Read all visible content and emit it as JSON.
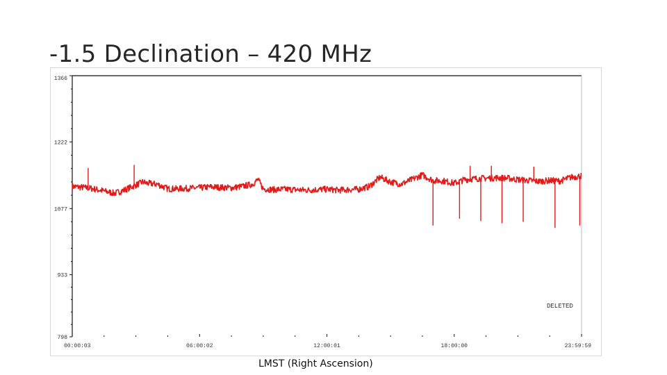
{
  "slide": {
    "title": "-1.5 Declination – 420 MHz",
    "xaxis_title": "LMST (Right Ascension)"
  },
  "colors": {
    "series": "#e11a1a",
    "axis": "#111111",
    "tick_text": "#333333",
    "background": "#ffffff"
  },
  "chart_data": {
    "type": "line",
    "title": "",
    "xlabel": "LMST (Right Ascension)",
    "ylabel": "",
    "xlim": [
      "00:00:03",
      "23:59:59"
    ],
    "ylim": [
      798,
      1366
    ],
    "grid": false,
    "y_ticks": [
      "1366",
      "1222",
      "1077",
      "933",
      "798"
    ],
    "x_ticks": [
      "00:00:03",
      "06:00:02",
      "12:00:01",
      "18:00:00",
      "23:59:59"
    ],
    "annotation": "DELETED",
    "series": [
      {
        "x": [
          "00:00:03",
          "00:30:00",
          "01:00:00",
          "01:30:00",
          "02:00:00",
          "02:30:00",
          "03:00:00",
          "03:20:00",
          "03:30:00",
          "04:00:00",
          "04:30:00",
          "05:00:00",
          "05:30:00",
          "06:00:00",
          "06:30:00",
          "07:00:00",
          "07:30:00",
          "08:00:00",
          "08:30:00",
          "08:45:00",
          "09:00:00",
          "09:30:00",
          "10:00:00",
          "10:30:00",
          "11:00:00",
          "11:30:00",
          "12:00:00",
          "12:30:00",
          "13:00:00",
          "13:30:00",
          "14:00:00",
          "14:30:00",
          "15:00:00",
          "15:30:00",
          "16:00:00",
          "16:30:00",
          "17:00:00",
          "17:30:00",
          "18:00:00",
          "18:30:00",
          "19:00:00",
          "19:30:00",
          "20:00:00",
          "20:30:00",
          "21:00:00",
          "21:30:00",
          "22:00:00",
          "22:30:00",
          "23:00:00",
          "23:30:00",
          "23:59:59"
        ],
        "y": [
          1125,
          1123,
          1120,
          1115,
          1110,
          1118,
          1128,
          1135,
          1132,
          1130,
          1120,
          1120,
          1121,
          1122,
          1124,
          1123,
          1122,
          1125,
          1130,
          1140,
          1120,
          1118,
          1119,
          1118,
          1117,
          1118,
          1119,
          1117,
          1118,
          1119,
          1125,
          1145,
          1135,
          1130,
          1140,
          1150,
          1138,
          1137,
          1132,
          1140,
          1142,
          1143,
          1144,
          1143,
          1140,
          1138,
          1136,
          1138,
          1137,
          1145,
          1148
        ]
      }
    ]
  }
}
